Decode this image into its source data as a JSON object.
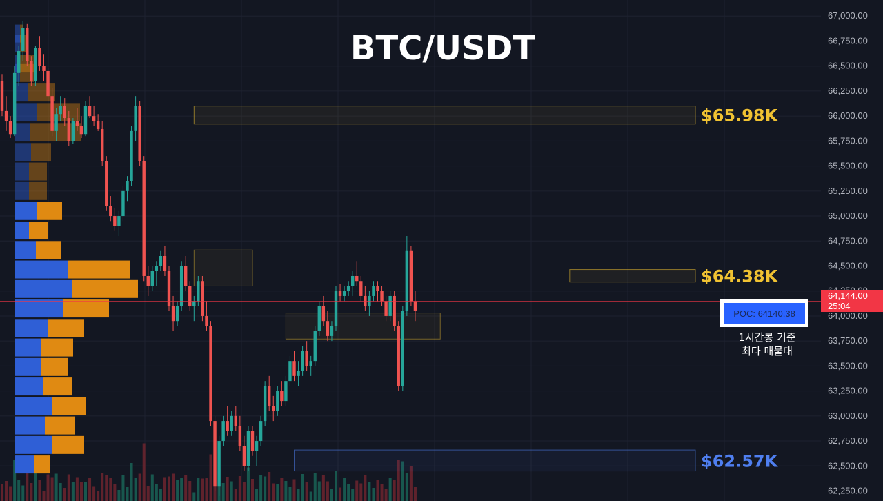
{
  "chart_data": {
    "type": "candlestick",
    "title": "BTC/USDT",
    "ylim": [
      62150,
      67050
    ],
    "y_ticks": [
      "67,000.00",
      "66,750.00",
      "66,500.00",
      "66,250.00",
      "66,000.00",
      "65,750.00",
      "65,500.00",
      "65,250.00",
      "65,000.00",
      "64,750.00",
      "64,500.00",
      "64,250.00",
      "64,000.00",
      "63,750.00",
      "63,500.00",
      "63,250.00",
      "63,000.00",
      "62,750.00",
      "62,500.00",
      "62,250.00"
    ],
    "y_tick_values": [
      67000,
      66750,
      66500,
      66250,
      66000,
      65750,
      65500,
      65250,
      65000,
      64750,
      64500,
      64250,
      64000,
      63750,
      63500,
      63250,
      63000,
      62750,
      62500,
      62250
    ],
    "current_price": {
      "label": "64,144.00",
      "countdown": "25:04",
      "value": 64144
    },
    "zones": [
      {
        "label": "$65.98K",
        "low": 65920,
        "high": 66100,
        "color": "#f0c232",
        "start": 46,
        "end": 172
      },
      {
        "label": "$64.38K",
        "low": 64340,
        "high": 64465,
        "color": "#f0c232",
        "start": 136,
        "end": 172
      },
      {
        "label": "$62.57K",
        "low": 62450,
        "high": 62660,
        "color": "#4f7ff0",
        "start": 70,
        "end": 172
      }
    ],
    "extra_boxes": [
      {
        "low": 64300,
        "high": 64660,
        "start": 46,
        "end": 60
      },
      {
        "low": 63770,
        "high": 64030,
        "start": 68,
        "end": 105
      }
    ],
    "poc": {
      "label": "POC: 64140.38",
      "value": 64140.38
    },
    "poc_note": [
      "1시간봉 기준",
      "최다 매물대"
    ],
    "volume_profile": [
      {
        "price": 66925,
        "buy": 0,
        "sell": 0
      },
      {
        "price": 66825,
        "buy": 14,
        "sell": 10
      },
      {
        "price": 66725,
        "buy": 14,
        "sell": 22
      },
      {
        "price": 66525,
        "buy": 14,
        "sell": 48
      },
      {
        "price": 66430,
        "buy": 14,
        "sell": 40
      },
      {
        "price": 66235,
        "buy": 36,
        "sell": 80
      },
      {
        "price": 66040,
        "buy": 62,
        "sell": 126
      },
      {
        "price": 65840,
        "buy": 44,
        "sell": 146
      },
      {
        "price": 65640,
        "buy": 46,
        "sell": 58
      },
      {
        "price": 65445,
        "buy": 40,
        "sell": 52
      },
      {
        "price": 65250,
        "buy": 40,
        "sell": 52
      },
      {
        "price": 65050,
        "buy": 62,
        "sell": 74
      },
      {
        "price": 64855,
        "buy": 40,
        "sell": 54
      },
      {
        "price": 64660,
        "buy": 60,
        "sell": 74
      },
      {
        "price": 64465,
        "buy": 154,
        "sell": 180
      },
      {
        "price": 64270,
        "buy": 166,
        "sell": 190
      },
      {
        "price": 64075,
        "buy": 140,
        "sell": 132
      },
      {
        "price": 63880,
        "buy": 94,
        "sell": 106
      },
      {
        "price": 63685,
        "buy": 74,
        "sell": 94
      },
      {
        "price": 63490,
        "buy": 74,
        "sell": 80
      },
      {
        "price": 63295,
        "buy": 80,
        "sell": 86
      },
      {
        "price": 63100,
        "buy": 106,
        "sell": 100
      },
      {
        "price": 62905,
        "buy": 86,
        "sell": 88
      },
      {
        "price": 62710,
        "buy": 106,
        "sell": 94
      },
      {
        "price": 62515,
        "buy": 54,
        "sell": 46
      }
    ],
    "candles": [
      [
        66350,
        66420,
        66000,
        66050
      ],
      [
        66050,
        66200,
        65850,
        65950
      ],
      [
        65950,
        66000,
        65780,
        65820
      ],
      [
        65820,
        66500,
        65800,
        66430
      ],
      [
        66430,
        66700,
        66300,
        66650
      ],
      [
        66650,
        66950,
        66550,
        66880
      ],
      [
        66880,
        66920,
        66500,
        66550
      ],
      [
        66550,
        66600,
        66300,
        66350
      ],
      [
        66350,
        66700,
        66300,
        66680
      ],
      [
        66680,
        66800,
        66450,
        66500
      ],
      [
        66500,
        66620,
        66350,
        66450
      ],
      [
        66450,
        66480,
        66150,
        66200
      ],
      [
        66200,
        66280,
        65800,
        65850
      ],
      [
        65850,
        66080,
        65750,
        66020
      ],
      [
        66020,
        66200,
        65950,
        66100
      ],
      [
        66100,
        66180,
        65900,
        65980
      ],
      [
        65980,
        66050,
        65700,
        65750
      ],
      [
        65750,
        65980,
        65720,
        65950
      ],
      [
        65950,
        66080,
        65850,
        65900
      ],
      [
        65900,
        66000,
        65780,
        65820
      ],
      [
        65820,
        66150,
        65800,
        66100
      ],
      [
        66100,
        66200,
        65980,
        66000
      ],
      [
        66000,
        66100,
        65900,
        65950
      ],
      [
        65950,
        66020,
        65850,
        65870
      ],
      [
        65870,
        65950,
        65500,
        65550
      ],
      [
        65550,
        65600,
        65050,
        65100
      ],
      [
        65100,
        65200,
        64950,
        65000
      ],
      [
        65000,
        65080,
        64850,
        64900
      ],
      [
        64900,
        65050,
        64800,
        65000
      ],
      [
        65000,
        65300,
        64950,
        65250
      ],
      [
        65250,
        65400,
        65150,
        65350
      ],
      [
        65350,
        65900,
        65300,
        65850
      ],
      [
        65850,
        66200,
        65750,
        66100
      ],
      [
        66100,
        66150,
        65500,
        65550
      ],
      [
        65550,
        65600,
        64350,
        64400
      ],
      [
        64400,
        64500,
        64200,
        64300
      ],
      [
        64300,
        64500,
        64250,
        64450
      ],
      [
        64450,
        64550,
        64300,
        64500
      ],
      [
        64500,
        64650,
        64450,
        64600
      ],
      [
        64600,
        64700,
        64400,
        64450
      ],
      [
        64450,
        64500,
        64050,
        64100
      ],
      [
        64100,
        64200,
        63850,
        63950
      ],
      [
        63950,
        64150,
        63900,
        64100
      ],
      [
        64100,
        64550,
        64050,
        64500
      ],
      [
        64500,
        64600,
        64250,
        64300
      ],
      [
        64300,
        64350,
        64050,
        64100
      ],
      [
        64100,
        64200,
        63950,
        64150
      ],
      [
        64150,
        64400,
        64100,
        64350
      ],
      [
        64350,
        64400,
        63950,
        64000
      ],
      [
        64000,
        64150,
        63850,
        63900
      ],
      [
        63900,
        63950,
        62900,
        62950
      ],
      [
        62950,
        63000,
        62250,
        62300
      ],
      [
        62300,
        62800,
        62200,
        62750
      ],
      [
        62750,
        63000,
        62700,
        62950
      ],
      [
        62950,
        63100,
        62800,
        62850
      ],
      [
        62850,
        63050,
        62800,
        63000
      ],
      [
        63000,
        63100,
        62850,
        62900
      ],
      [
        62900,
        63000,
        62650,
        62700
      ],
      [
        62700,
        62800,
        62450,
        62500
      ],
      [
        62500,
        62900,
        62450,
        62850
      ],
      [
        62850,
        62900,
        62600,
        62650
      ],
      [
        62650,
        62800,
        62500,
        62750
      ],
      [
        62750,
        63000,
        62700,
        62950
      ],
      [
        62950,
        63350,
        62900,
        63300
      ],
      [
        63300,
        63400,
        63050,
        63100
      ],
      [
        63100,
        63200,
        62950,
        63050
      ],
      [
        63050,
        63300,
        63000,
        63250
      ],
      [
        63250,
        63350,
        63100,
        63150
      ],
      [
        63150,
        63400,
        63100,
        63350
      ],
      [
        63350,
        63600,
        63300,
        63550
      ],
      [
        63550,
        63650,
        63350,
        63400
      ],
      [
        63400,
        63550,
        63300,
        63450
      ],
      [
        63450,
        63700,
        63400,
        63650
      ],
      [
        63650,
        63750,
        63450,
        63500
      ],
      [
        63500,
        63600,
        63400,
        63550
      ],
      [
        63550,
        63900,
        63500,
        63850
      ],
      [
        63850,
        64150,
        63800,
        64100
      ],
      [
        64100,
        64200,
        63900,
        63950
      ],
      [
        63950,
        64050,
        63750,
        63800
      ],
      [
        63800,
        63950,
        63750,
        63900
      ],
      [
        63900,
        64300,
        63850,
        64250
      ],
      [
        64250,
        64320,
        64150,
        64200
      ],
      [
        64200,
        64300,
        64150,
        64250
      ],
      [
        64250,
        64350,
        64200,
        64300
      ],
      [
        64300,
        64450,
        64200,
        64400
      ],
      [
        64400,
        64550,
        64300,
        64350
      ],
      [
        64350,
        64400,
        64150,
        64200
      ],
      [
        64200,
        64300,
        64050,
        64100
      ],
      [
        64100,
        64250,
        64000,
        64200
      ],
      [
        64200,
        64350,
        64150,
        64300
      ],
      [
        64300,
        64350,
        64150,
        64250
      ],
      [
        64250,
        64300,
        64100,
        64150
      ],
      [
        64150,
        64200,
        63950,
        64000
      ],
      [
        64000,
        64250,
        63950,
        64200
      ],
      [
        64200,
        64250,
        63850,
        63900
      ],
      [
        63900,
        63950,
        63250,
        63300
      ],
      [
        63300,
        64100,
        63250,
        64050
      ],
      [
        64050,
        64800,
        64000,
        64650
      ],
      [
        64650,
        64700,
        64100,
        64150
      ],
      [
        64150,
        64250,
        63950,
        64050
      ]
    ]
  }
}
